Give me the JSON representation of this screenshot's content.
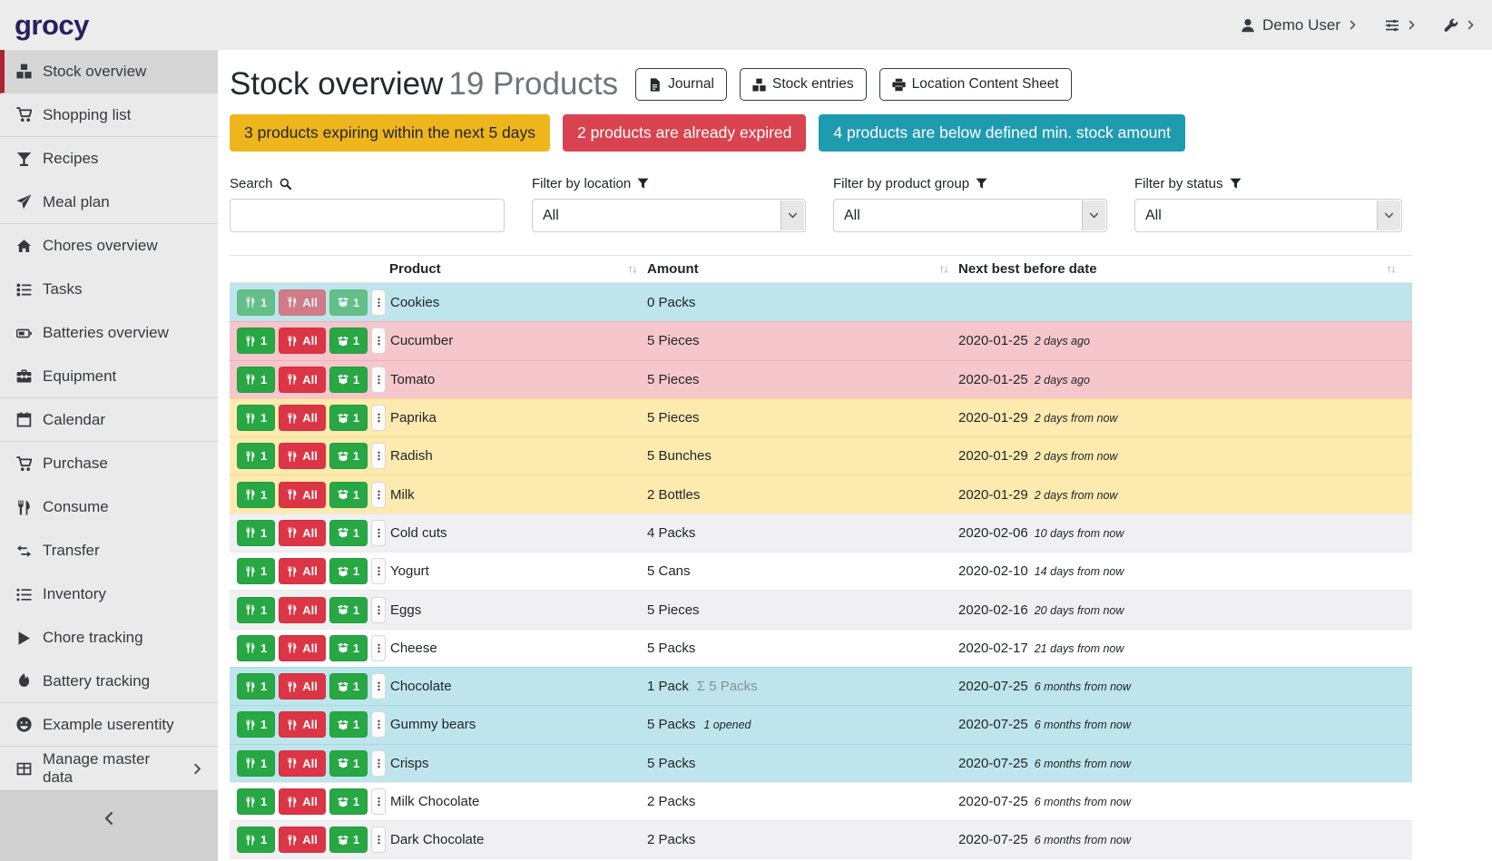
{
  "navbar": {
    "logo": "grocy",
    "user": {
      "label": "Demo User",
      "icon": "user"
    },
    "menus": [
      {
        "icon": "sliders"
      },
      {
        "icon": "wrench"
      }
    ]
  },
  "sidebar": {
    "items": [
      {
        "label": "Stock overview",
        "icon": "boxes",
        "active": true,
        "divider_after": true
      },
      {
        "label": "Shopping list",
        "icon": "cart",
        "divider_after": true
      },
      {
        "label": "Recipes",
        "icon": "cocktail"
      },
      {
        "label": "Meal plan",
        "icon": "paper-plane",
        "divider_after": true
      },
      {
        "label": "Chores overview",
        "icon": "home"
      },
      {
        "label": "Tasks",
        "icon": "tasks"
      },
      {
        "label": "Batteries overview",
        "icon": "battery"
      },
      {
        "label": "Equipment",
        "icon": "toolbox",
        "divider_after": true
      },
      {
        "label": "Calendar",
        "icon": "calendar",
        "divider_after": true
      },
      {
        "label": "Purchase",
        "icon": "cart"
      },
      {
        "label": "Consume",
        "icon": "utensils"
      },
      {
        "label": "Transfer",
        "icon": "exchange"
      },
      {
        "label": "Inventory",
        "icon": "list"
      },
      {
        "label": "Chore tracking",
        "icon": "play"
      },
      {
        "label": "Battery tracking",
        "icon": "fire",
        "divider_after": true
      },
      {
        "label": "Example userentity",
        "icon": "smile",
        "divider_after": true
      },
      {
        "label": "Manage master data",
        "icon": "table",
        "chevron": true
      }
    ],
    "collapse_icon": "chevron-left"
  },
  "header": {
    "title": "Stock overview",
    "subtitle": "19 Products",
    "buttons": [
      {
        "label": "Journal",
        "icon": "file"
      },
      {
        "label": "Stock entries",
        "icon": "boxes"
      },
      {
        "label": "Location Content Sheet",
        "icon": "printer"
      }
    ]
  },
  "alerts": [
    {
      "text": "3 products expiring within the next 5 days",
      "bg": "#efb51d",
      "fg": "#212529"
    },
    {
      "text": "2 products are already expired",
      "bg": "#d9434f",
      "fg": "#ffffff"
    },
    {
      "text": "4 products are below defined min. stock amount",
      "bg": "#1f9bb0",
      "fg": "#ffffff"
    }
  ],
  "filters": {
    "search": {
      "label": "Search",
      "icon": "search",
      "value": "",
      "placeholder": ""
    },
    "selects": [
      {
        "name": "location-filter",
        "label": "Filter by location",
        "icon": "funnel",
        "value": "All"
      },
      {
        "name": "product-group-filter",
        "label": "Filter by product group",
        "icon": "funnel",
        "value": "All"
      },
      {
        "name": "status-filter",
        "label": "Filter by status",
        "icon": "funnel",
        "value": "All"
      }
    ]
  },
  "table": {
    "columns": [
      "Product",
      "Amount",
      "Next best before date"
    ],
    "row_buttons": {
      "consume_one": {
        "label": "1",
        "icon": "utensils"
      },
      "consume_all": {
        "label": "All",
        "icon": "utensils"
      },
      "open_one": {
        "label": "1",
        "icon": "box-open"
      },
      "menu_icon": "ellipsis-v"
    },
    "rows": [
      {
        "product": "Cookies",
        "amount": "0 Packs",
        "date": "",
        "timeago": "",
        "status": "info",
        "buttons_muted": true
      },
      {
        "product": "Cucumber",
        "amount": "5 Pieces",
        "date": "2020-01-25",
        "timeago": "2 days ago",
        "status": "danger"
      },
      {
        "product": "Tomato",
        "amount": "5 Pieces",
        "date": "2020-01-25",
        "timeago": "2 days ago",
        "status": "danger"
      },
      {
        "product": "Paprika",
        "amount": "5 Pieces",
        "date": "2020-01-29",
        "timeago": "2 days from now",
        "status": "warning"
      },
      {
        "product": "Radish",
        "amount": "5 Bunches",
        "date": "2020-01-29",
        "timeago": "2 days from now",
        "status": "warning"
      },
      {
        "product": "Milk",
        "amount": "2 Bottles",
        "date": "2020-01-29",
        "timeago": "2 days from now",
        "status": "warning"
      },
      {
        "product": "Cold cuts",
        "amount": "4 Packs",
        "date": "2020-02-06",
        "timeago": "10 days from now"
      },
      {
        "product": "Yogurt",
        "amount": "5 Cans",
        "date": "2020-02-10",
        "timeago": "14 days from now"
      },
      {
        "product": "Eggs",
        "amount": "5 Pieces",
        "date": "2020-02-16",
        "timeago": "20 days from now"
      },
      {
        "product": "Cheese",
        "amount": "5 Packs",
        "date": "2020-02-17",
        "timeago": "21 days from now"
      },
      {
        "product": "Chocolate",
        "amount": "1 Pack",
        "amount_note": "Σ 5 Packs",
        "note_type": "sum",
        "date": "2020-07-25",
        "timeago": "6 months from now",
        "status": "info"
      },
      {
        "product": "Gummy bears",
        "amount": "5 Packs",
        "amount_note": "1 opened",
        "note_type": "opened",
        "date": "2020-07-25",
        "timeago": "6 months from now",
        "status": "info"
      },
      {
        "product": "Crisps",
        "amount": "5 Packs",
        "date": "2020-07-25",
        "timeago": "6 months from now",
        "status": "info"
      },
      {
        "product": "Milk Chocolate",
        "amount": "2 Packs",
        "date": "2020-07-25",
        "timeago": "6 months from now"
      },
      {
        "product": "Dark Chocolate",
        "amount": "2 Packs",
        "date": "2020-07-25",
        "timeago": "6 months from now"
      },
      {
        "product": "",
        "amount": "",
        "date": "",
        "timeago": "",
        "partial": true
      }
    ]
  },
  "colors": {
    "sidebar_active_accent": "#b02333",
    "consume_green": "#28a745",
    "consume_red": "#dc3545",
    "row_info": "#bee5eb",
    "row_danger": "#f5c6cb",
    "row_warning": "#fdeaae"
  }
}
